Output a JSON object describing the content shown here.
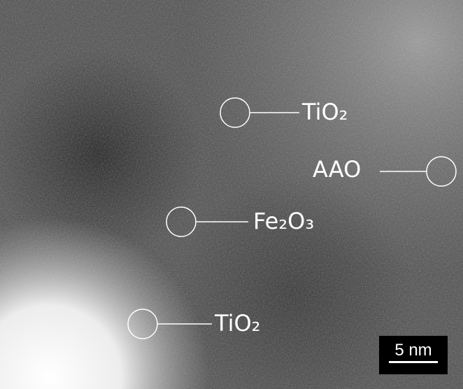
{
  "annotations": [
    "TiO₂",
    "AAO",
    "Fe₂O₃",
    "TiO₂"
  ],
  "scale_bar": "5 nm"
}
